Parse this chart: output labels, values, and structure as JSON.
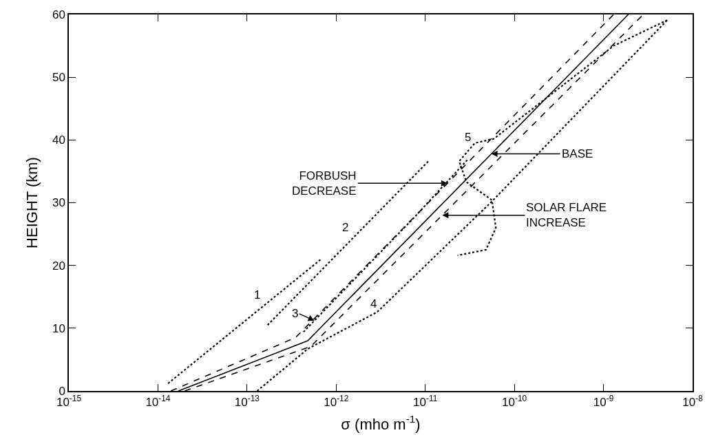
{
  "chart_data": {
    "type": "line",
    "xlabel": "σ (mho m$^{-1}$)",
    "ylabel": "HEIGHT (km)",
    "log": "x",
    "xlim": [
      1e-15,
      1e-08
    ],
    "ylim": [
      0,
      60
    ],
    "grid": false,
    "legend": false,
    "marker": "none",
    "xticks": [
      {
        "value": 1e-15,
        "label": "10$^{-15}$"
      },
      {
        "value": 1e-14,
        "label": "10$^{-14}$"
      },
      {
        "value": 1e-13,
        "label": "10$^{-13}$"
      },
      {
        "value": 1e-12,
        "label": "10$^{-12}$"
      },
      {
        "value": 1e-11,
        "label": "10$^{-11}$"
      },
      {
        "value": 1e-10,
        "label": "10$^{-10}$"
      },
      {
        "value": 1e-09,
        "label": "10$^{-9}$"
      },
      {
        "value": 1e-08,
        "label": "10$^{-8}$"
      }
    ],
    "yticks": [
      0,
      10,
      20,
      30,
      40,
      50,
      60
    ],
    "series": [
      {
        "color": "#000000",
        "line_style": "solid",
        "x": [
          1.7e-14,
          4.8e-13,
          1.9e-09
        ],
        "values": [
          0,
          8.0,
          60
        ]
      },
      {
        "color": "#000000",
        "line_style": "dashed",
        "x": [
          1.4e-14,
          3.5e-13,
          1.3e-09
        ],
        "values": [
          0,
          8.5,
          60
        ]
      },
      {
        "color": "#000000",
        "line_style": "dashed",
        "x": [
          2e-14,
          5.2e-13,
          2.8e-09
        ],
        "values": [
          0,
          7.1,
          60
        ]
      },
      {
        "name": "1",
        "color": "#000000",
        "line_style": "dotted",
        "x": [
          1.3e-14,
          6.9e-13
        ],
        "values": [
          1.2,
          21.1
        ]
      },
      {
        "name": "2",
        "color": "#000000",
        "line_style": "dotted",
        "x": [
          1.7e-13,
          1.1e-11
        ],
        "values": [
          10.5,
          36.7
        ]
      },
      {
        "color": "#000000",
        "line_style": "dotted",
        "x": [
          4.3e-13,
          7.8e-12,
          3e-11
        ],
        "values": [
          9.4,
          27.9,
          36.9
        ]
      },
      {
        "name": "4",
        "color": "#000000",
        "line_style": "dotted",
        "x": [
          1.3e-13,
          4.8e-13,
          2.9e-12,
          5.5e-11,
          5.2e-09
        ],
        "values": [
          0,
          6.7,
          12.6,
          30.1,
          59.1
        ]
      },
      {
        "name": "5",
        "color": "#000000",
        "line_style": "dotted",
        "x": [
          5.2e-09,
          1.3e-09,
          5.9e-11,
          3.6e-11,
          2.4e-11,
          2.9e-11,
          5.6e-11,
          6.2e-11,
          4.8e-11,
          2.3e-11
        ],
        "values": [
          59.1,
          55.0,
          40.2,
          39.5,
          36.6,
          33.3,
          30.4,
          26.0,
          22.5,
          21.6
        ]
      }
    ],
    "annotations": [
      {
        "text": "3",
        "x": 5.7e-13,
        "y": 11.2
      },
      {
        "text": "FORBUSH\nDECREASE",
        "x": 1.77e-11,
        "y": 33.1
      },
      {
        "text": "BASE",
        "x": 5.5e-11,
        "y": 37.8
      },
      {
        "text": "SOLAR FLARE\nINCREASE",
        "x": 1.55e-11,
        "y": 28.0
      }
    ]
  }
}
